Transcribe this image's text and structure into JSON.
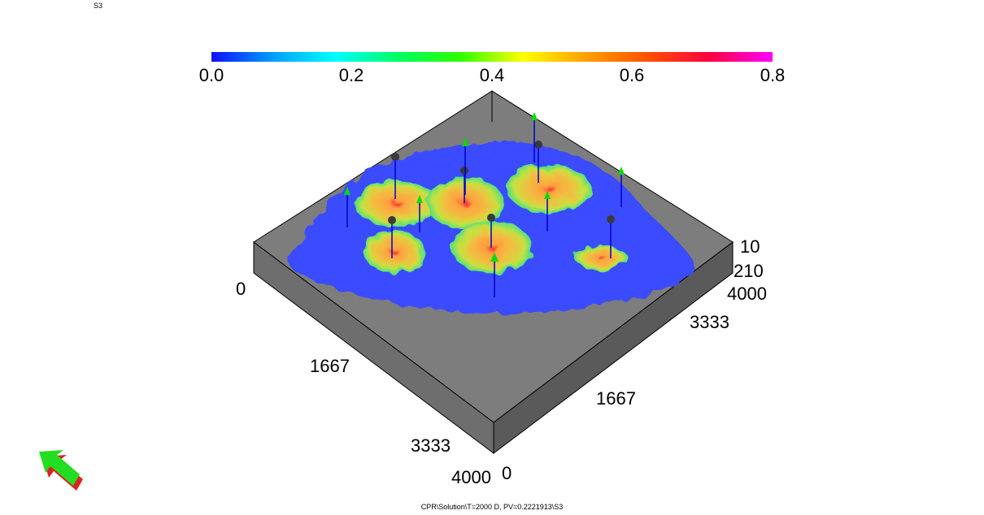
{
  "window": {
    "property_label": "S3"
  },
  "colorbar": {
    "min": 0.0,
    "max": 0.8,
    "ticks": [
      "0.0",
      "0.2",
      "0.4",
      "0.6",
      "0.8"
    ],
    "tick_values": [
      0.0,
      0.2,
      0.4,
      0.6,
      0.8
    ],
    "colors": [
      "#1010ff",
      "#00a0ff",
      "#00ffff",
      "#00ff60",
      "#30ff00",
      "#ffff00",
      "#ffa000",
      "#ff5000",
      "#ff0040",
      "#ff00ff"
    ]
  },
  "axes": {
    "x_ticks": [
      "0",
      "1667",
      "3333",
      "4000"
    ],
    "y_ticks": [
      "0",
      "1667",
      "3333",
      "4000"
    ],
    "z_ticks": [
      "10",
      "210"
    ]
  },
  "colors": {
    "box": "#808080",
    "well_line": "#0000cc",
    "producer": "#3a3a3a",
    "injector": "#00dd00",
    "orientation_arrow": "#22dd22",
    "orientation_shadow": "#dd2222"
  },
  "status_text": "CPR\\Solution\\T=2000 D, PV=0.2221913\\S3"
}
